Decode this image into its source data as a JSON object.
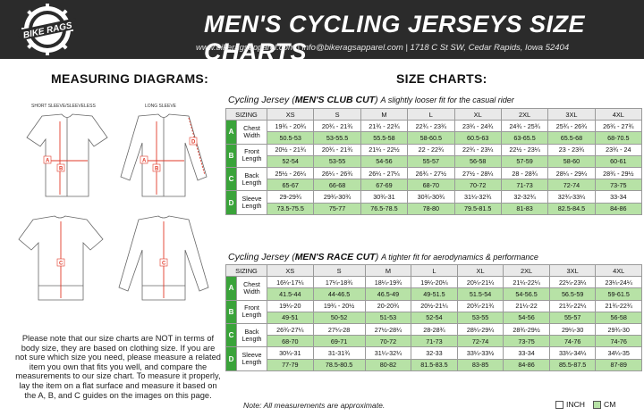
{
  "header": {
    "brand": "BIKE RAGS",
    "title": "MEN'S CYCLING JERSEYS SIZE CHARTS",
    "contact": "www.bikeragsapparel.com  |  info@bikeragsapparel.com  |  1718 C St SW, Cedar Rapids, Iowa 52404"
  },
  "left": {
    "title": "MEASURING DIAGRAMS:",
    "short_label": "SHORT SLEEVE/SLEEVELESS",
    "long_label": "LONG SLEEVE",
    "note": "Please note that our size charts are NOT in terms of body size, they are based on clothing size.  If you are not sure which size you need, please measure a related item you own that fits you well, and compare the measurements to our size chart. To measure it properly, lay the item on a flat surface and measure it based on the A, B, and C guides on the images on this page."
  },
  "right": {
    "title": "SIZE CHARTS:"
  },
  "club": {
    "title_pre": "Cycling Jersey (",
    "title_bold": "MEN'S CLUB CUT",
    "title_post": ")",
    "subtitle": "A slightly looser fit for the casual rider",
    "header": [
      "SIZING",
      "XS",
      "S",
      "M",
      "L",
      "XL",
      "2XL",
      "3XL",
      "4XL"
    ],
    "rows": [
      {
        "letter": "A",
        "name1": "Chest",
        "name2": "Width",
        "inch": [
          "19¾ - 20¾",
          "20¾ - 21¾",
          "21¾ - 22¾",
          "22¾ - 23¾",
          "23¾ - 24¾",
          "24¾ - 25¾",
          "25¾ - 26¾",
          "26¾ - 27¾"
        ],
        "cm": [
          "50.5-53",
          "53-55.5",
          "55.5-58",
          "58-60.5",
          "60.5-63",
          "63-65.5",
          "65.5-68",
          "68-70.5"
        ]
      },
      {
        "letter": "B",
        "name1": "Front",
        "name2": "Length",
        "inch": [
          "20½ - 21¾",
          "20¾ - 21¾",
          "21¼ - 22½",
          "22 - 22¾",
          "22¾ - 23¼",
          "22½ - 23¼",
          "23 - 23¾",
          "23¾ - 24"
        ],
        "cm": [
          "52-54",
          "53-55",
          "54-56",
          "55-57",
          "56-58",
          "57-59",
          "58-60",
          "60-61"
        ]
      },
      {
        "letter": "C",
        "name1": "Back",
        "name2": "Length",
        "inch": [
          "25½ - 26¼",
          "26¼ - 26¾",
          "26¼ - 27¼",
          "26¾ - 27½",
          "27½ - 28¼",
          "28 - 28¾",
          "28¼ - 29¼",
          "28¾ - 29½"
        ],
        "cm": [
          "65-67",
          "66-68",
          "67-69",
          "68-70",
          "70-72",
          "71-73",
          "72-74",
          "73-75"
        ]
      },
      {
        "letter": "D",
        "name1": "Sleeve",
        "name2": "Length",
        "inch": [
          "29-29¾",
          "29¾-30¾",
          "30¾-31",
          "30¾-30¾",
          "31¼-32¾",
          "32-32¾",
          "32¾-33¼",
          "33-34"
        ],
        "cm": [
          "73.5-75.5",
          "75-77",
          "76.5-78.5",
          "78-80",
          "79.5-81.5",
          "81-83",
          "82.5-84.5",
          "84-86"
        ]
      }
    ]
  },
  "race": {
    "title_pre": "Cycling Jersey (",
    "title_bold": "MEN'S RACE CUT",
    "title_post": ")",
    "subtitle": "A tighter fit for aerodynamics & performance",
    "header": [
      "SIZING",
      "XS",
      "S",
      "M",
      "L",
      "XL",
      "2XL",
      "3XL",
      "4XL"
    ],
    "rows": [
      {
        "letter": "A",
        "name1": "Chest",
        "name2": "Width",
        "inch": [
          "16¼-17¼",
          "17¼-18¾",
          "18¼-19¾",
          "19¼-20¼",
          "20¼-21¼",
          "21¼-22¼",
          "22¼-23¼",
          "23¼-24¼"
        ],
        "cm": [
          "41.5-44",
          "44-46.5",
          "46.5-49",
          "49-51.5",
          "51.5-54",
          "54-56.5",
          "56.5-59",
          "59-61.5"
        ]
      },
      {
        "letter": "B",
        "name1": "Front",
        "name2": "Length",
        "inch": [
          "19¼-20",
          "19¾ - 20½",
          "20-20¾",
          "20½-21¼",
          "20¾-21¾",
          "21¼-22",
          "21¾-22¼",
          "21¾-22¾"
        ],
        "cm": [
          "49-51",
          "50-52",
          "51-53",
          "52-54",
          "53-55",
          "54-56",
          "55-57",
          "56-58"
        ]
      },
      {
        "letter": "C",
        "name1": "Back",
        "name2": "Length",
        "inch": [
          "26¾-27¼",
          "27¼-28",
          "27½-28¼",
          "28-28¾",
          "28¼-29¼",
          "28¾-29½",
          "29¼-30",
          "29¾-30"
        ],
        "cm": [
          "68-70",
          "69-71",
          "70-72",
          "71-73",
          "72-74",
          "73-75",
          "74-76",
          "74-76"
        ]
      },
      {
        "letter": "D",
        "name1": "Sleeve",
        "name2": "Length",
        "inch": [
          "30¼-31",
          "31-31¾",
          "31¼-32¼",
          "32-33",
          "33¼-33½",
          "33-34",
          "33¼-34¼",
          "34¼-35"
        ],
        "cm": [
          "77-79",
          "78.5-80.5",
          "80-82",
          "81.5-83.5",
          "83-85",
          "84-86",
          "85.5-87.5",
          "87-89"
        ]
      }
    ]
  },
  "footer": {
    "note": "Note: All measurements are approximate.",
    "inch_label": "INCH",
    "cm_label": "CM",
    "cm_color": "#b7e2a6",
    "letter_color": "#3aa33a"
  }
}
